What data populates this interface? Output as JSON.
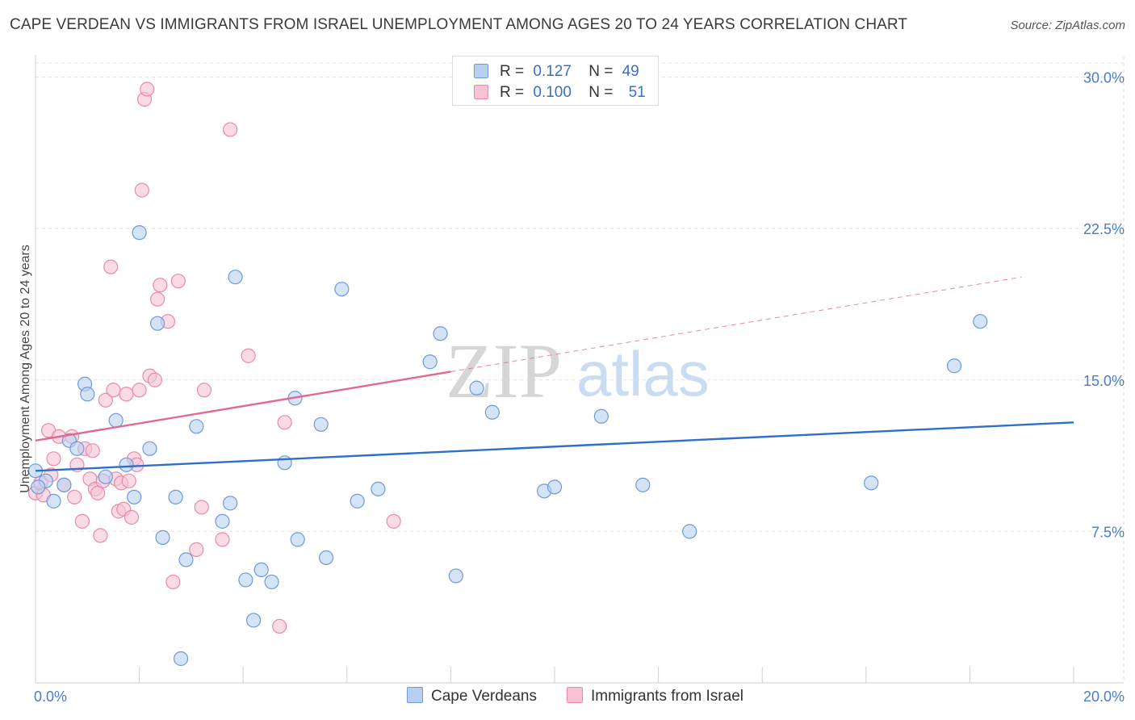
{
  "title": "CAPE VERDEAN VS IMMIGRANTS FROM ISRAEL UNEMPLOYMENT AMONG AGES 20 TO 24 YEARS CORRELATION CHART",
  "source": "Source: ZipAtlas.com",
  "watermark": {
    "zip": "ZIP",
    "atlas": "atlas"
  },
  "legend": {
    "rows": [
      {
        "r_label": "R =",
        "r_value": "0.127",
        "n_label": "N =",
        "n_value": "49"
      },
      {
        "r_label": "R =",
        "r_value": "0.100",
        "n_label": "N =",
        "n_value": "51"
      }
    ]
  },
  "bottom_legend": {
    "series1": "Cape Verdeans",
    "series2": "Immigrants from Israel"
  },
  "colors": {
    "blue_fill": "#b7d0f0",
    "blue_stroke": "#6f9ad8",
    "blue_line": "#2f6fca",
    "pink_fill": "#f7c3d3",
    "pink_stroke": "#e88aaa",
    "pink_line": "#e06892",
    "grid": "#e2e2e2",
    "tick_text": "#4a7cc7"
  },
  "chart_data": {
    "type": "scatter",
    "title": "CAPE VERDEAN VS IMMIGRANTS FROM ISRAEL UNEMPLOYMENT AMONG AGES 20 TO 24 YEARS CORRELATION CHART",
    "xlabel": "",
    "ylabel": "Unemployment Among Ages 20 to 24 years",
    "xlim": [
      0,
      20
    ],
    "ylim": [
      0,
      30.7
    ],
    "x_tick_labels": {
      "left": "0.0%",
      "right": "20.0%"
    },
    "y_ticks": [
      7.5,
      15.0,
      22.5,
      30.0
    ],
    "y_tick_labels": [
      "7.5%",
      "15.0%",
      "22.5%",
      "30.0%"
    ],
    "series": [
      {
        "name": "Cape Verdeans",
        "trend": {
          "x0": 0,
          "y0": 10.5,
          "x1": 20,
          "y1": 12.9,
          "solid_to": 20
        },
        "points": [
          [
            0.0,
            10.5
          ],
          [
            0.2,
            10.0
          ],
          [
            0.35,
            9.0
          ],
          [
            0.55,
            9.8
          ],
          [
            0.65,
            12.0
          ],
          [
            0.8,
            11.6
          ],
          [
            0.95,
            14.8
          ],
          [
            1.35,
            10.2
          ],
          [
            1.55,
            13.0
          ],
          [
            1.75,
            10.8
          ],
          [
            1.9,
            9.2
          ],
          [
            2.0,
            22.3
          ],
          [
            2.2,
            11.6
          ],
          [
            2.35,
            17.8
          ],
          [
            2.45,
            7.2
          ],
          [
            2.7,
            9.2
          ],
          [
            2.9,
            6.1
          ],
          [
            2.8,
            1.2
          ],
          [
            3.1,
            12.7
          ],
          [
            3.6,
            8.0
          ],
          [
            3.75,
            8.9
          ],
          [
            3.85,
            20.1
          ],
          [
            4.05,
            5.1
          ],
          [
            4.2,
            3.1
          ],
          [
            4.35,
            5.6
          ],
          [
            4.55,
            5.0
          ],
          [
            4.8,
            10.9
          ],
          [
            5.05,
            7.1
          ],
          [
            5.0,
            14.1
          ],
          [
            5.5,
            12.8
          ],
          [
            5.6,
            6.2
          ],
          [
            5.9,
            19.5
          ],
          [
            6.2,
            9.0
          ],
          [
            6.6,
            9.6
          ],
          [
            7.6,
            15.9
          ],
          [
            7.8,
            17.3
          ],
          [
            8.1,
            5.3
          ],
          [
            8.5,
            14.6
          ],
          [
            8.8,
            13.4
          ],
          [
            9.8,
            9.5
          ],
          [
            10.0,
            9.7
          ],
          [
            10.9,
            13.2
          ],
          [
            11.7,
            9.8
          ],
          [
            12.6,
            7.5
          ],
          [
            16.1,
            9.9
          ],
          [
            17.7,
            15.7
          ],
          [
            18.2,
            17.9
          ],
          [
            0.05,
            9.7
          ],
          [
            1.0,
            14.3
          ]
        ]
      },
      {
        "name": "Immigrants from Israel",
        "trend": {
          "x0": 0,
          "y0": 12.0,
          "x1": 19.0,
          "y1": 20.1,
          "solid_to": 8.0
        },
        "points": [
          [
            0.0,
            9.4
          ],
          [
            0.1,
            9.9
          ],
          [
            0.15,
            9.3
          ],
          [
            0.25,
            12.5
          ],
          [
            0.3,
            10.3
          ],
          [
            0.35,
            11.1
          ],
          [
            0.45,
            12.2
          ],
          [
            0.55,
            9.8
          ],
          [
            0.7,
            12.2
          ],
          [
            0.75,
            9.2
          ],
          [
            0.8,
            10.8
          ],
          [
            0.9,
            8.0
          ],
          [
            0.95,
            11.6
          ],
          [
            1.05,
            10.1
          ],
          [
            1.1,
            11.5
          ],
          [
            1.15,
            9.6
          ],
          [
            1.2,
            9.4
          ],
          [
            1.25,
            7.3
          ],
          [
            1.3,
            10.0
          ],
          [
            1.35,
            14.0
          ],
          [
            1.45,
            20.6
          ],
          [
            1.5,
            14.5
          ],
          [
            1.55,
            10.1
          ],
          [
            1.6,
            8.5
          ],
          [
            1.65,
            9.9
          ],
          [
            1.7,
            8.6
          ],
          [
            1.75,
            14.3
          ],
          [
            1.8,
            10.0
          ],
          [
            1.85,
            8.2
          ],
          [
            1.9,
            11.1
          ],
          [
            1.95,
            10.8
          ],
          [
            2.0,
            14.5
          ],
          [
            2.05,
            24.4
          ],
          [
            2.1,
            28.9
          ],
          [
            2.15,
            29.4
          ],
          [
            2.2,
            15.2
          ],
          [
            2.3,
            15.0
          ],
          [
            2.35,
            19.0
          ],
          [
            2.4,
            19.7
          ],
          [
            2.55,
            17.9
          ],
          [
            2.65,
            5.0
          ],
          [
            2.75,
            19.9
          ],
          [
            3.1,
            6.6
          ],
          [
            3.2,
            8.7
          ],
          [
            3.25,
            14.5
          ],
          [
            3.6,
            7.1
          ],
          [
            3.75,
            27.4
          ],
          [
            4.1,
            16.2
          ],
          [
            4.7,
            2.8
          ],
          [
            4.8,
            12.9
          ],
          [
            6.9,
            8.0
          ]
        ]
      }
    ]
  }
}
